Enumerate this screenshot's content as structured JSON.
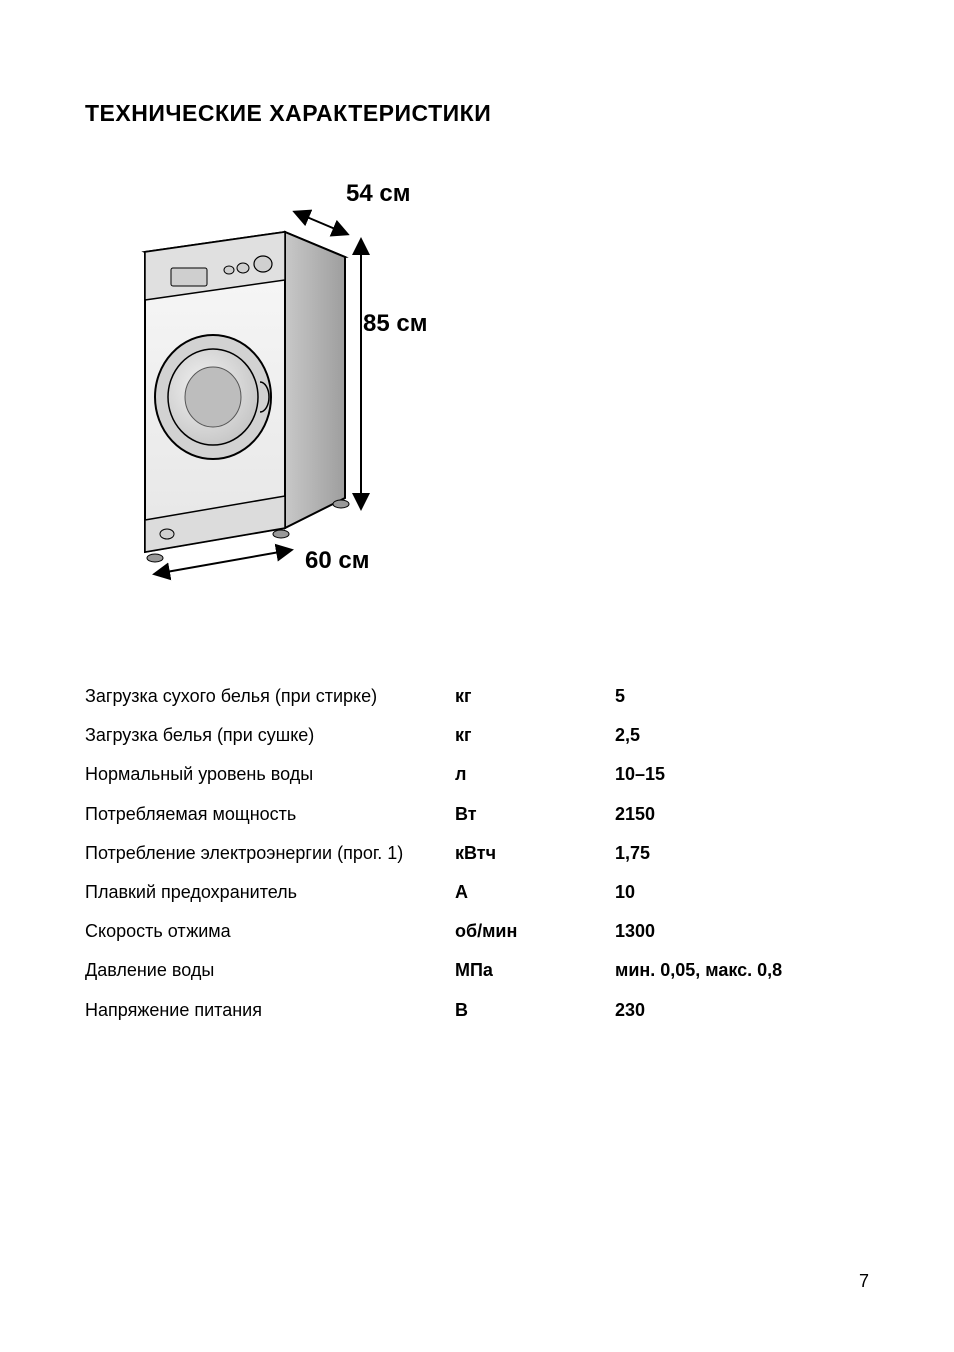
{
  "title": "ТЕХНИЧЕСКИЕ ХАРАКТЕРИСТИКИ",
  "dimensions": {
    "depth": "54 см",
    "height": "85 см",
    "width": "60 см"
  },
  "specs": [
    {
      "name": "Загрузка сухого белья (при стирке)",
      "unit": "кг",
      "value": "5"
    },
    {
      "name": "Загрузка белья (при сушке)",
      "unit": "кг",
      "value": "2,5"
    },
    {
      "name": "Нормальный уровень воды",
      "unit": "л",
      "value": "10–15"
    },
    {
      "name": "Потребляемая мощность",
      "unit": "Вт",
      "value": "2150"
    },
    {
      "name": "Потребление электроэнергии (прог. 1)",
      "unit": "кВтч",
      "value": "1,75"
    },
    {
      "name": "Плавкий предохранитель",
      "unit": "А",
      "value": "10"
    },
    {
      "name": "Скорость отжима",
      "unit": "об/мин",
      "value": "1300"
    },
    {
      "name": "Давление воды",
      "unit": "МПа",
      "value": "мин. 0,05, макс. 0,8"
    },
    {
      "name": "Напряжение питания",
      "unit": "В",
      "value": "230"
    }
  ],
  "page_number": "7",
  "colors": {
    "text": "#000000",
    "background": "#ffffff",
    "machine_fill_light": "#f4f4f4",
    "machine_fill_mid": "#d9d9d9",
    "machine_fill_dark": "#b5b5b5",
    "machine_stroke": "#000000"
  }
}
